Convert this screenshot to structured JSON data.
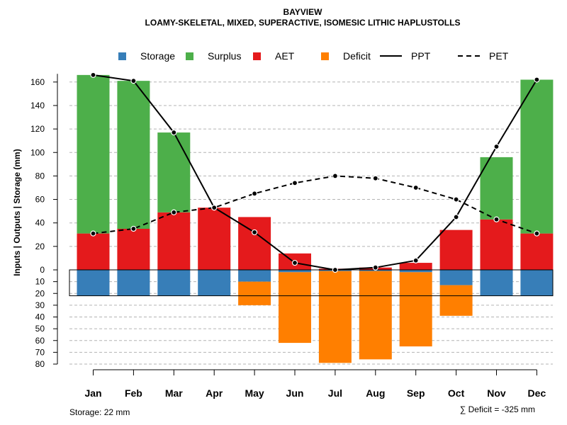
{
  "chart_data": {
    "type": "bar",
    "title": "BAYVIEW",
    "subtitle": "LOAMY-SKELETAL, MIXED, SUPERACTIVE, ISOMESIC LITHIC HAPLUSTOLLS",
    "ylabel": "Inputs | Outputs | Storage    (mm)",
    "categories": [
      "Jan",
      "Feb",
      "Mar",
      "Apr",
      "May",
      "Jun",
      "Jul",
      "Aug",
      "Sep",
      "Oct",
      "Nov",
      "Dec"
    ],
    "ylim_upper": [
      0,
      170
    ],
    "ylim_lower": [
      0,
      80
    ],
    "upper_ticks": [
      0,
      20,
      40,
      60,
      80,
      100,
      120,
      140,
      160
    ],
    "lower_ticks": [
      10,
      20,
      30,
      40,
      50,
      60,
      70,
      80
    ],
    "series": [
      {
        "name": "Storage",
        "color": "#377eb8",
        "values": [
          22,
          22,
          22,
          22,
          10,
          2,
          1,
          1,
          2,
          13,
          22,
          22
        ]
      },
      {
        "name": "Surplus",
        "color": "#4daf4a",
        "values": [
          135,
          126,
          68,
          0,
          0,
          0,
          0,
          0,
          0,
          0,
          53,
          131
        ]
      },
      {
        "name": "AET",
        "color": "#e41a1c",
        "values": [
          31,
          35,
          49,
          53,
          45,
          14,
          1,
          2,
          6,
          34,
          43,
          31
        ]
      },
      {
        "name": "Deficit",
        "color": "#ff7f00",
        "values": [
          0,
          0,
          0,
          0,
          20,
          60,
          78,
          75,
          63,
          26,
          0,
          0
        ]
      },
      {
        "name": "PPT",
        "style": "solid",
        "values": [
          166,
          161,
          117,
          53,
          32,
          6,
          0,
          2,
          8,
          45,
          105,
          162
        ]
      },
      {
        "name": "PET",
        "style": "dashed",
        "values": [
          31,
          35,
          49,
          53,
          65,
          74,
          80,
          78,
          70,
          60,
          43,
          31
        ]
      }
    ],
    "legend": [
      "Storage",
      "Surplus",
      "AET",
      "Deficit",
      "PPT",
      "PET"
    ],
    "legend_position": "top",
    "grid": true,
    "storage_note": "Storage: 22 mm",
    "deficit_note": "∑ Deficit = -325 mm"
  }
}
